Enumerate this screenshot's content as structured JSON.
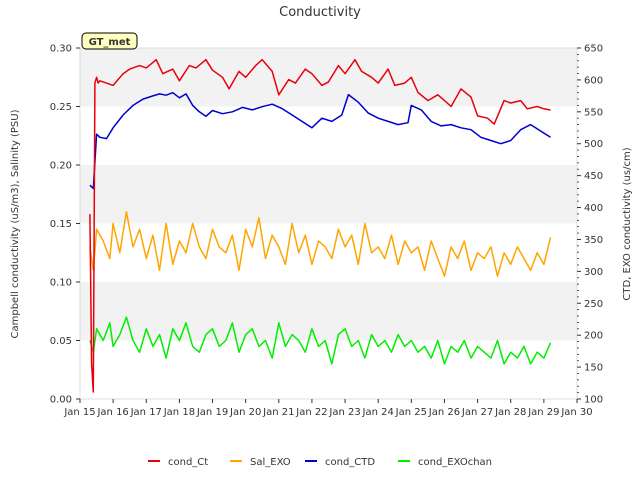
{
  "chart_data": {
    "type": "line",
    "title": "Conductivity",
    "badge": "GT_met",
    "ylabel_left": "Campbell conductivity (uS/m3), Salinity (PSU)",
    "ylabel_right": "CTD, EXO conductivity (us/cm)",
    "x_tick_labels": [
      "Jan 15",
      "Jan 16",
      "Jan 17",
      "Jan 18",
      "Jan 19",
      "Jan 20",
      "Jan 21",
      "Jan 22",
      "Jan 23",
      "Jan 24",
      "Jan 25",
      "Jan 26",
      "Jan 27",
      "Jan 28",
      "Jan 29",
      "Jan 30"
    ],
    "xlim": [
      15,
      30
    ],
    "ylim_left": [
      0,
      0.3
    ],
    "ylim_right": [
      100,
      650
    ],
    "y_ticks_left": [
      "0.00",
      "0.05",
      "0.10",
      "0.15",
      "0.20",
      "0.25",
      "0.30"
    ],
    "y_ticks_right": [
      "100",
      "150",
      "200",
      "250",
      "300",
      "350",
      "400",
      "450",
      "500",
      "550",
      "600",
      "650"
    ],
    "legend_position": "bottom-center",
    "colors": {
      "cond_Ct": "#e8000b",
      "Sal_EXO": "#ffa500",
      "cond_CTD": "#0000cc",
      "cond_EXOchan": "#00ee00",
      "band": "#f2f2f2",
      "badge_bg": "#ffffc0",
      "badge_text": "#8b0000"
    },
    "series": [
      {
        "name": "cond_Ct",
        "axis": "left",
        "x": [
          15.3,
          15.35,
          15.4,
          15.45,
          15.5,
          15.55,
          15.6,
          15.8,
          16.0,
          16.3,
          16.5,
          16.8,
          17.0,
          17.3,
          17.5,
          17.8,
          18.0,
          18.3,
          18.5,
          18.8,
          19.0,
          19.3,
          19.5,
          19.8,
          20.0,
          20.3,
          20.5,
          20.8,
          21.0,
          21.3,
          21.5,
          21.8,
          22.0,
          22.3,
          22.5,
          22.8,
          23.0,
          23.3,
          23.5,
          23.8,
          24.0,
          24.3,
          24.5,
          24.8,
          25.0,
          25.2,
          25.5,
          25.8,
          26.0,
          26.2,
          26.5,
          26.8,
          27.0,
          27.3,
          27.5,
          27.8,
          28.0,
          28.3,
          28.5,
          28.8,
          29.0,
          29.2
        ],
        "values": [
          0.158,
          0.03,
          0.006,
          0.27,
          0.275,
          0.27,
          0.272,
          0.27,
          0.268,
          0.278,
          0.282,
          0.285,
          0.283,
          0.29,
          0.278,
          0.282,
          0.272,
          0.285,
          0.283,
          0.29,
          0.281,
          0.275,
          0.265,
          0.28,
          0.275,
          0.285,
          0.29,
          0.28,
          0.26,
          0.273,
          0.27,
          0.282,
          0.278,
          0.268,
          0.271,
          0.285,
          0.278,
          0.29,
          0.28,
          0.275,
          0.27,
          0.282,
          0.268,
          0.27,
          0.275,
          0.262,
          0.255,
          0.26,
          0.255,
          0.25,
          0.265,
          0.258,
          0.242,
          0.24,
          0.235,
          0.255,
          0.253,
          0.255,
          0.248,
          0.25,
          0.248,
          0.247
        ]
      },
      {
        "name": "Sal_EXO",
        "axis": "left",
        "x": [
          15.3,
          15.4,
          15.5,
          15.7,
          15.9,
          16.0,
          16.2,
          16.4,
          16.6,
          16.8,
          17.0,
          17.2,
          17.4,
          17.6,
          17.8,
          18.0,
          18.2,
          18.4,
          18.6,
          18.8,
          19.0,
          19.2,
          19.4,
          19.6,
          19.8,
          20.0,
          20.2,
          20.4,
          20.6,
          20.8,
          21.0,
          21.2,
          21.4,
          21.6,
          21.8,
          22.0,
          22.2,
          22.4,
          22.6,
          22.8,
          23.0,
          23.2,
          23.4,
          23.6,
          23.8,
          24.0,
          24.2,
          24.4,
          24.6,
          24.8,
          25.0,
          25.2,
          25.4,
          25.6,
          25.8,
          26.0,
          26.2,
          26.4,
          26.6,
          26.8,
          27.0,
          27.2,
          27.4,
          27.6,
          27.8,
          28.0,
          28.2,
          28.4,
          28.6,
          28.8,
          29.0,
          29.2
        ],
        "values": [
          0.13,
          0.11,
          0.145,
          0.135,
          0.12,
          0.15,
          0.125,
          0.16,
          0.13,
          0.145,
          0.12,
          0.14,
          0.11,
          0.15,
          0.115,
          0.135,
          0.125,
          0.15,
          0.13,
          0.12,
          0.145,
          0.13,
          0.125,
          0.14,
          0.11,
          0.145,
          0.13,
          0.155,
          0.12,
          0.14,
          0.13,
          0.115,
          0.15,
          0.125,
          0.14,
          0.115,
          0.135,
          0.13,
          0.12,
          0.145,
          0.13,
          0.14,
          0.115,
          0.15,
          0.125,
          0.13,
          0.12,
          0.14,
          0.115,
          0.135,
          0.125,
          0.13,
          0.11,
          0.135,
          0.12,
          0.105,
          0.13,
          0.12,
          0.135,
          0.11,
          0.125,
          0.12,
          0.13,
          0.105,
          0.125,
          0.115,
          0.13,
          0.12,
          0.11,
          0.125,
          0.115,
          0.138
        ]
      },
      {
        "name": "cond_CTD",
        "axis": "right",
        "x": [
          15.3,
          15.4,
          15.5,
          15.6,
          15.8,
          16.0,
          16.3,
          16.6,
          16.9,
          17.2,
          17.4,
          17.6,
          17.8,
          18.0,
          18.2,
          18.4,
          18.6,
          18.8,
          19.0,
          19.3,
          19.6,
          19.9,
          20.2,
          20.5,
          20.8,
          21.1,
          21.4,
          21.7,
          22.0,
          22.3,
          22.6,
          22.9,
          23.1,
          23.4,
          23.7,
          24.0,
          24.3,
          24.6,
          24.9,
          25.0,
          25.3,
          25.6,
          25.9,
          26.2,
          26.5,
          26.8,
          27.1,
          27.4,
          27.7,
          28.0,
          28.3,
          28.6,
          28.9,
          29.2
        ],
        "values": [
          435,
          430,
          515,
          510,
          508,
          525,
          545,
          560,
          570,
          575,
          578,
          576,
          580,
          572,
          578,
          560,
          550,
          543,
          552,
          547,
          550,
          557,
          553,
          558,
          562,
          555,
          545,
          535,
          525,
          540,
          535,
          545,
          577,
          565,
          548,
          540,
          535,
          530,
          533,
          560,
          553,
          535,
          528,
          530,
          525,
          522,
          510,
          505,
          500,
          505,
          522,
          530,
          520,
          510
        ]
      },
      {
        "name": "cond_EXOchan",
        "axis": "left",
        "x": [
          15.3,
          15.4,
          15.5,
          15.7,
          15.9,
          16.0,
          16.2,
          16.4,
          16.6,
          16.8,
          17.0,
          17.2,
          17.4,
          17.6,
          17.8,
          18.0,
          18.2,
          18.4,
          18.6,
          18.8,
          19.0,
          19.2,
          19.4,
          19.6,
          19.8,
          20.0,
          20.2,
          20.4,
          20.6,
          20.8,
          21.0,
          21.2,
          21.4,
          21.6,
          21.8,
          22.0,
          22.2,
          22.4,
          22.6,
          22.8,
          23.0,
          23.2,
          23.4,
          23.6,
          23.8,
          24.0,
          24.2,
          24.4,
          24.6,
          24.8,
          25.0,
          25.2,
          25.4,
          25.6,
          25.8,
          26.0,
          26.2,
          26.4,
          26.6,
          26.8,
          27.0,
          27.2,
          27.4,
          27.6,
          27.8,
          28.0,
          28.2,
          28.4,
          28.6,
          28.8,
          29.0,
          29.2
        ],
        "values": [
          0.05,
          0.04,
          0.06,
          0.05,
          0.065,
          0.045,
          0.055,
          0.07,
          0.05,
          0.04,
          0.06,
          0.045,
          0.055,
          0.035,
          0.06,
          0.05,
          0.065,
          0.045,
          0.04,
          0.055,
          0.06,
          0.045,
          0.05,
          0.065,
          0.04,
          0.055,
          0.06,
          0.045,
          0.05,
          0.035,
          0.065,
          0.045,
          0.055,
          0.05,
          0.04,
          0.06,
          0.045,
          0.05,
          0.03,
          0.055,
          0.06,
          0.045,
          0.05,
          0.035,
          0.055,
          0.045,
          0.05,
          0.04,
          0.055,
          0.045,
          0.05,
          0.04,
          0.045,
          0.035,
          0.05,
          0.03,
          0.045,
          0.04,
          0.05,
          0.035,
          0.045,
          0.04,
          0.035,
          0.05,
          0.03,
          0.04,
          0.035,
          0.045,
          0.03,
          0.04,
          0.035,
          0.048
        ]
      }
    ]
  }
}
